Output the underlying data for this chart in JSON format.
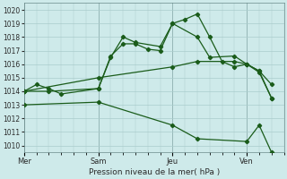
{
  "bg_color": "#ceeaea",
  "plot_bg_color": "#ceeaea",
  "grid_color": "#aacccc",
  "line_color": "#1a5c1a",
  "xlabel": "Pression niveau de la mer( hPa )",
  "ylim": [
    1009.5,
    1020.5
  ],
  "yticks": [
    1010,
    1011,
    1012,
    1013,
    1014,
    1015,
    1016,
    1017,
    1018,
    1019,
    1020
  ],
  "xtick_labels": [
    "Mer",
    "Sam",
    "Jeu",
    "Ven"
  ],
  "xtick_positions": [
    0,
    6,
    12,
    18
  ],
  "vline_positions": [
    0,
    6,
    12,
    18
  ],
  "xlim": [
    0,
    21
  ],
  "series": [
    {
      "x": [
        0,
        1,
        2,
        3,
        6,
        7,
        8,
        9,
        10,
        11,
        12,
        13,
        14,
        15,
        16,
        17,
        18,
        19,
        20
      ],
      "y": [
        1014.0,
        1014.5,
        1014.2,
        1013.8,
        1014.2,
        1016.6,
        1017.5,
        1017.5,
        1017.1,
        1017.0,
        1019.0,
        1019.3,
        1019.7,
        1018.0,
        1016.2,
        1015.8,
        1016.0,
        1015.5,
        1013.5
      ]
    },
    {
      "x": [
        0,
        2,
        6,
        7,
        8,
        9,
        11,
        12,
        14,
        15,
        17,
        18,
        19,
        20
      ],
      "y": [
        1014.0,
        1014.0,
        1014.2,
        1016.5,
        1018.0,
        1017.6,
        1017.3,
        1019.0,
        1018.0,
        1016.5,
        1016.6,
        1016.0,
        1015.4,
        1013.5
      ]
    },
    {
      "x": [
        0,
        6,
        12,
        14,
        17,
        18,
        19,
        20
      ],
      "y": [
        1014.0,
        1015.0,
        1015.8,
        1016.2,
        1016.2,
        1016.0,
        1015.5,
        1014.5
      ]
    },
    {
      "x": [
        0,
        6,
        12,
        14,
        18,
        19,
        20
      ],
      "y": [
        1013.0,
        1013.2,
        1011.5,
        1010.5,
        1010.3,
        1011.5,
        1009.5
      ]
    }
  ]
}
